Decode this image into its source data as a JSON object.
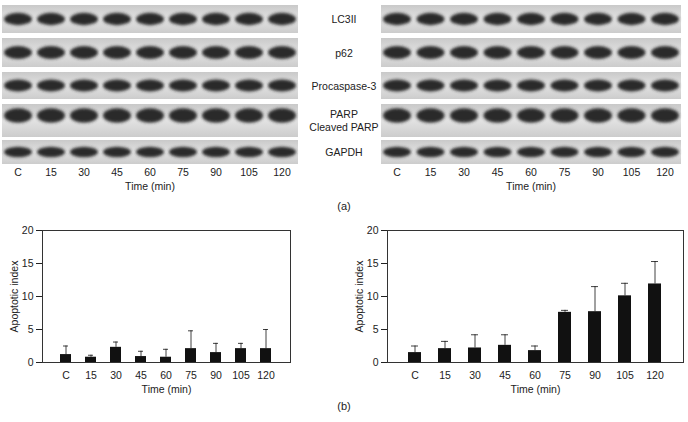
{
  "figure_labels": [
    "(a)",
    "(b)"
  ],
  "blots": {
    "lanes": [
      "C",
      "15",
      "30",
      "45",
      "60",
      "75",
      "90",
      "105",
      "120"
    ],
    "xlabel": "Time (min)",
    "rows": [
      [
        "LC3II"
      ],
      [
        "p62"
      ],
      [
        "Procaspase-3"
      ],
      [
        "PARP",
        "Cleaved PARP"
      ],
      [
        "GAPDH"
      ]
    ]
  },
  "chart_data": [
    {
      "type": "bar",
      "xlabel": "Time (min)",
      "ylabel": "Apoptotic index",
      "categories": [
        "C",
        "15",
        "30",
        "45",
        "60",
        "75",
        "90",
        "105",
        "120"
      ],
      "values": [
        1.2,
        0.8,
        2.3,
        0.9,
        0.8,
        2.1,
        1.5,
        2.1,
        2.1
      ],
      "errors": [
        1.3,
        0.3,
        0.8,
        0.8,
        1.2,
        2.7,
        1.4,
        0.8,
        2.9
      ],
      "color": "#111111",
      "ylim": [
        0,
        20
      ],
      "yticks": [
        0,
        5,
        10,
        15,
        20
      ],
      "grid": false
    },
    {
      "type": "bar",
      "xlabel": "Time (min)",
      "ylabel": "Apoptotic index",
      "categories": [
        "C",
        "15",
        "30",
        "45",
        "60",
        "75",
        "90",
        "105",
        "120"
      ],
      "values": [
        1.5,
        2.1,
        2.2,
        2.6,
        1.8,
        7.6,
        7.7,
        10.1,
        11.9
      ],
      "errors": [
        1.0,
        1.1,
        2.0,
        1.6,
        0.7,
        0.3,
        3.8,
        1.9,
        3.4
      ],
      "color": "#111111",
      "ylim": [
        0,
        20
      ],
      "yticks": [
        0,
        5,
        10,
        15,
        20
      ],
      "grid": false
    }
  ]
}
